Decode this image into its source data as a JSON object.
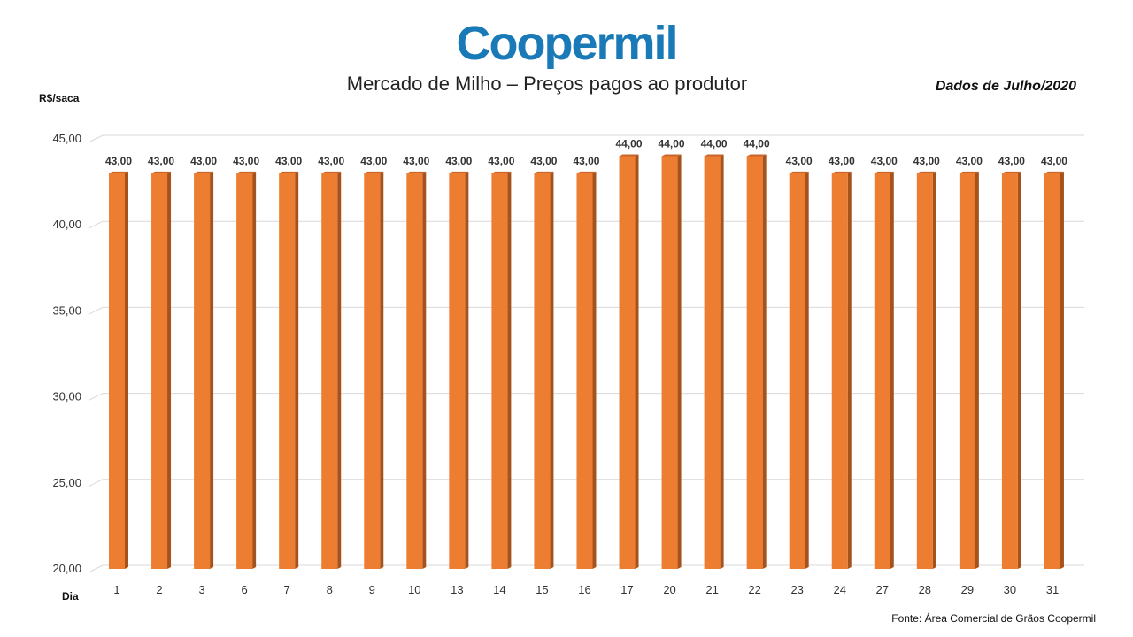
{
  "logo": {
    "text": "Coopermil",
    "color": "#1a7ab8"
  },
  "title": "Mercado de Milho – Preços pagos ao produtor",
  "period": "Dados de Julho/2020",
  "source": "Fonte:  Área Comercial de Grãos Coopermil",
  "chart_data": {
    "type": "bar",
    "title": "Mercado de Milho – Preços pagos ao produtor",
    "ylabel": "R$/saca",
    "xlabel": "Dia",
    "ylim": [
      20,
      45
    ],
    "yticks": [
      "20,00",
      "25,00",
      "30,00",
      "35,00",
      "40,00",
      "45,00"
    ],
    "ytick_values": [
      20,
      25,
      30,
      35,
      40,
      45
    ],
    "grid": true,
    "bar_color": "#ed7d31",
    "categories": [
      "1",
      "2",
      "3",
      "6",
      "7",
      "8",
      "9",
      "10",
      "13",
      "14",
      "15",
      "16",
      "17",
      "20",
      "21",
      "22",
      "23",
      "24",
      "27",
      "28",
      "29",
      "30",
      "31"
    ],
    "values": [
      43,
      43,
      43,
      43,
      43,
      43,
      43,
      43,
      43,
      43,
      43,
      43,
      44,
      44,
      44,
      44,
      43,
      43,
      43,
      43,
      43,
      43,
      43
    ],
    "data_labels": [
      "43,00",
      "43,00",
      "43,00",
      "43,00",
      "43,00",
      "43,00",
      "43,00",
      "43,00",
      "43,00",
      "43,00",
      "43,00",
      "43,00",
      "44,00",
      "44,00",
      "44,00",
      "44,00",
      "43,00",
      "43,00",
      "43,00",
      "43,00",
      "43,00",
      "43,00",
      "43,00"
    ]
  }
}
